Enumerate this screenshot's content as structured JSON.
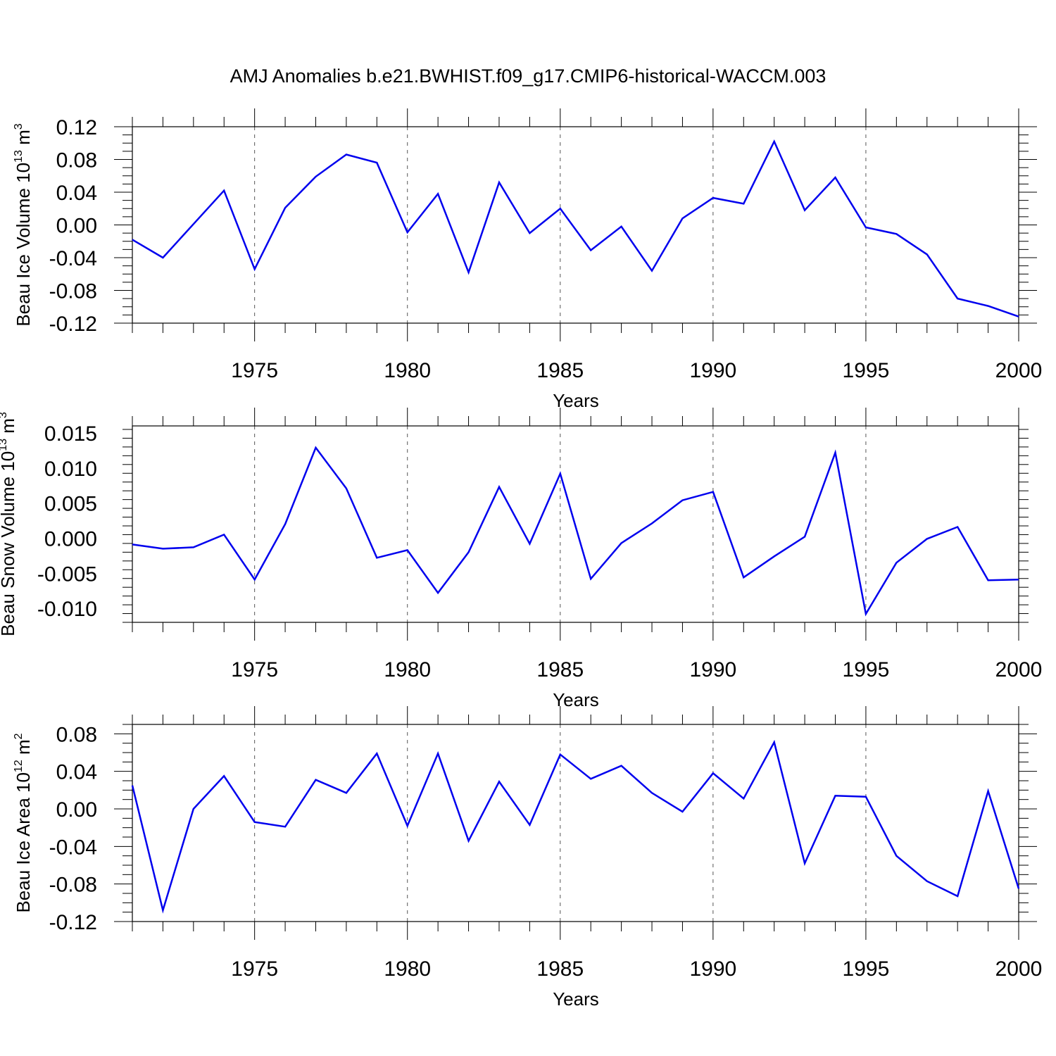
{
  "figure": {
    "title": "AMJ Anomalies b.e21.BWHIST.f09_g17.CMIP6-historical-WACCM.003"
  },
  "line_color": "#0000ee",
  "chart_data": [
    {
      "type": "line",
      "ylabel": {
        "base": "Beau Ice Volume 10",
        "exp1": "13",
        "mid": " m",
        "exp2": "3"
      },
      "xlabel": "Years",
      "xlim": [
        1971,
        2000
      ],
      "ylim": [
        -0.12,
        0.12
      ],
      "x_ticks": [
        1975,
        1980,
        1985,
        1990,
        1995,
        2000
      ],
      "y_ticks": [
        "0.12",
        "0.08",
        "0.04",
        "0.00",
        "-0.04",
        "-0.08",
        "-0.12"
      ],
      "x": [
        1971,
        1972,
        1973,
        1974,
        1975,
        1976,
        1977,
        1978,
        1979,
        1980,
        1981,
        1982,
        1983,
        1984,
        1985,
        1986,
        1987,
        1988,
        1989,
        1990,
        1991,
        1992,
        1993,
        1994,
        1995,
        1996,
        1997,
        1998,
        1999,
        2000
      ],
      "series": [
        {
          "values": [
            -0.018,
            -0.04,
            0.001,
            0.042,
            -0.054,
            0.021,
            0.059,
            0.086,
            0.076,
            -0.009,
            0.038,
            -0.058,
            0.052,
            -0.01,
            0.02,
            -0.031,
            -0.002,
            -0.056,
            0.008,
            0.033,
            0.026,
            0.102,
            0.018,
            0.058,
            -0.003,
            -0.011,
            -0.036,
            -0.09,
            -0.099,
            -0.112
          ]
        }
      ],
      "grid": "vertical-dashed"
    },
    {
      "type": "line",
      "ylabel": {
        "base": "Beau Snow Volume 10",
        "exp1": "13",
        "mid": " m",
        "exp2": "3"
      },
      "xlabel": "Years",
      "xlim": [
        1971,
        2000
      ],
      "ylim": [
        -0.012,
        0.016
      ],
      "x_ticks": [
        1975,
        1980,
        1985,
        1990,
        1995,
        2000
      ],
      "y_ticks": [
        "0.015",
        "0.010",
        "0.005",
        "0.000",
        "-0.005",
        "-0.010"
      ],
      "x": [
        1971,
        1972,
        1973,
        1974,
        1975,
        1976,
        1977,
        1978,
        1979,
        1980,
        1981,
        1982,
        1983,
        1984,
        1985,
        1986,
        1987,
        1988,
        1989,
        1990,
        1991,
        1992,
        1993,
        1994,
        1995,
        1996,
        1997,
        1998,
        1999,
        2000
      ],
      "series": [
        {
          "values": [
            -0.0009,
            -0.0015,
            -0.0013,
            0.0005,
            -0.0059,
            0.002,
            0.0129,
            0.0071,
            -0.0028,
            -0.0017,
            -0.0078,
            -0.002,
            0.0073,
            -0.0008,
            0.0092,
            -0.0058,
            -0.0007,
            0.0021,
            0.0054,
            0.0066,
            -0.0056,
            -0.0026,
            0.0002,
            0.0122,
            -0.0108,
            -0.0035,
            -0.0001,
            0.0016,
            -0.006,
            -0.0059
          ]
        }
      ],
      "grid": "vertical-dashed"
    },
    {
      "type": "line",
      "ylabel": {
        "base": "Beau Ice Area 10",
        "exp1": "12",
        "mid": " m",
        "exp2": "2"
      },
      "xlabel": "Years",
      "xlim": [
        1971,
        2000
      ],
      "ylim": [
        -0.12,
        0.09
      ],
      "x_ticks": [
        1975,
        1980,
        1985,
        1990,
        1995,
        2000
      ],
      "y_ticks": [
        "0.08",
        "0.04",
        "0.00",
        "-0.04",
        "-0.08",
        "-0.12"
      ],
      "x": [
        1971,
        1972,
        1973,
        1974,
        1975,
        1976,
        1977,
        1978,
        1979,
        1980,
        1981,
        1982,
        1983,
        1984,
        1985,
        1986,
        1987,
        1988,
        1989,
        1990,
        1991,
        1992,
        1993,
        1994,
        1995,
        1996,
        1997,
        1998,
        1999,
        2000
      ],
      "series": [
        {
          "values": [
            0.025,
            -0.108,
            0.0,
            0.035,
            -0.014,
            -0.019,
            0.031,
            0.017,
            0.059,
            -0.018,
            0.059,
            -0.034,
            0.029,
            -0.017,
            0.058,
            0.032,
            0.046,
            0.017,
            -0.003,
            0.038,
            0.011,
            0.071,
            -0.058,
            0.014,
            0.013,
            -0.05,
            -0.077,
            -0.093,
            0.019,
            -0.085
          ]
        }
      ],
      "grid": "vertical-dashed"
    }
  ]
}
